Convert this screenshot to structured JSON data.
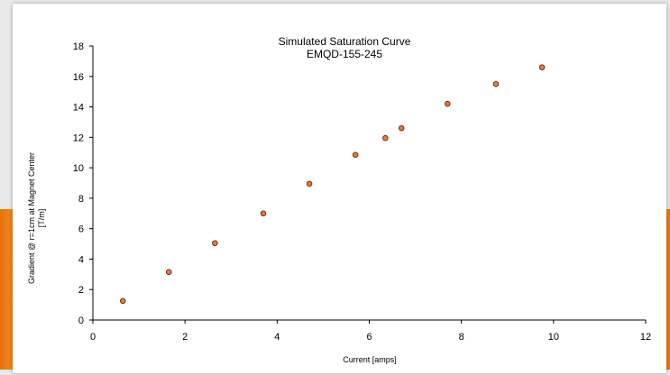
{
  "chart_data": {
    "type": "scatter",
    "title": "Simulated Saturation Curve",
    "subtitle": "EMQD-155-245",
    "xlabel": "Current [amps]",
    "ylabel_line1": "Gradient @ r=1cm at Magnet Center",
    "ylabel_line2": "[T/m]",
    "xlim": [
      0,
      12
    ],
    "ylim": [
      0,
      18
    ],
    "xticks": [
      0,
      2,
      4,
      6,
      8,
      10,
      12
    ],
    "yticks": [
      0,
      2,
      4,
      6,
      8,
      10,
      12,
      14,
      16,
      18
    ],
    "grid": false,
    "legend": "none",
    "marker_color": "#f0773a",
    "marker_edge_color": "#5a2a10",
    "points": [
      {
        "x": 0.65,
        "y": 1.25
      },
      {
        "x": 1.65,
        "y": 3.15
      },
      {
        "x": 2.65,
        "y": 5.05
      },
      {
        "x": 3.7,
        "y": 7.0
      },
      {
        "x": 4.7,
        "y": 8.95
      },
      {
        "x": 5.7,
        "y": 10.85
      },
      {
        "x": 6.35,
        "y": 11.95
      },
      {
        "x": 6.7,
        "y": 12.6
      },
      {
        "x": 7.7,
        "y": 14.2
      },
      {
        "x": 8.75,
        "y": 15.5
      },
      {
        "x": 9.75,
        "y": 16.6
      }
    ]
  }
}
